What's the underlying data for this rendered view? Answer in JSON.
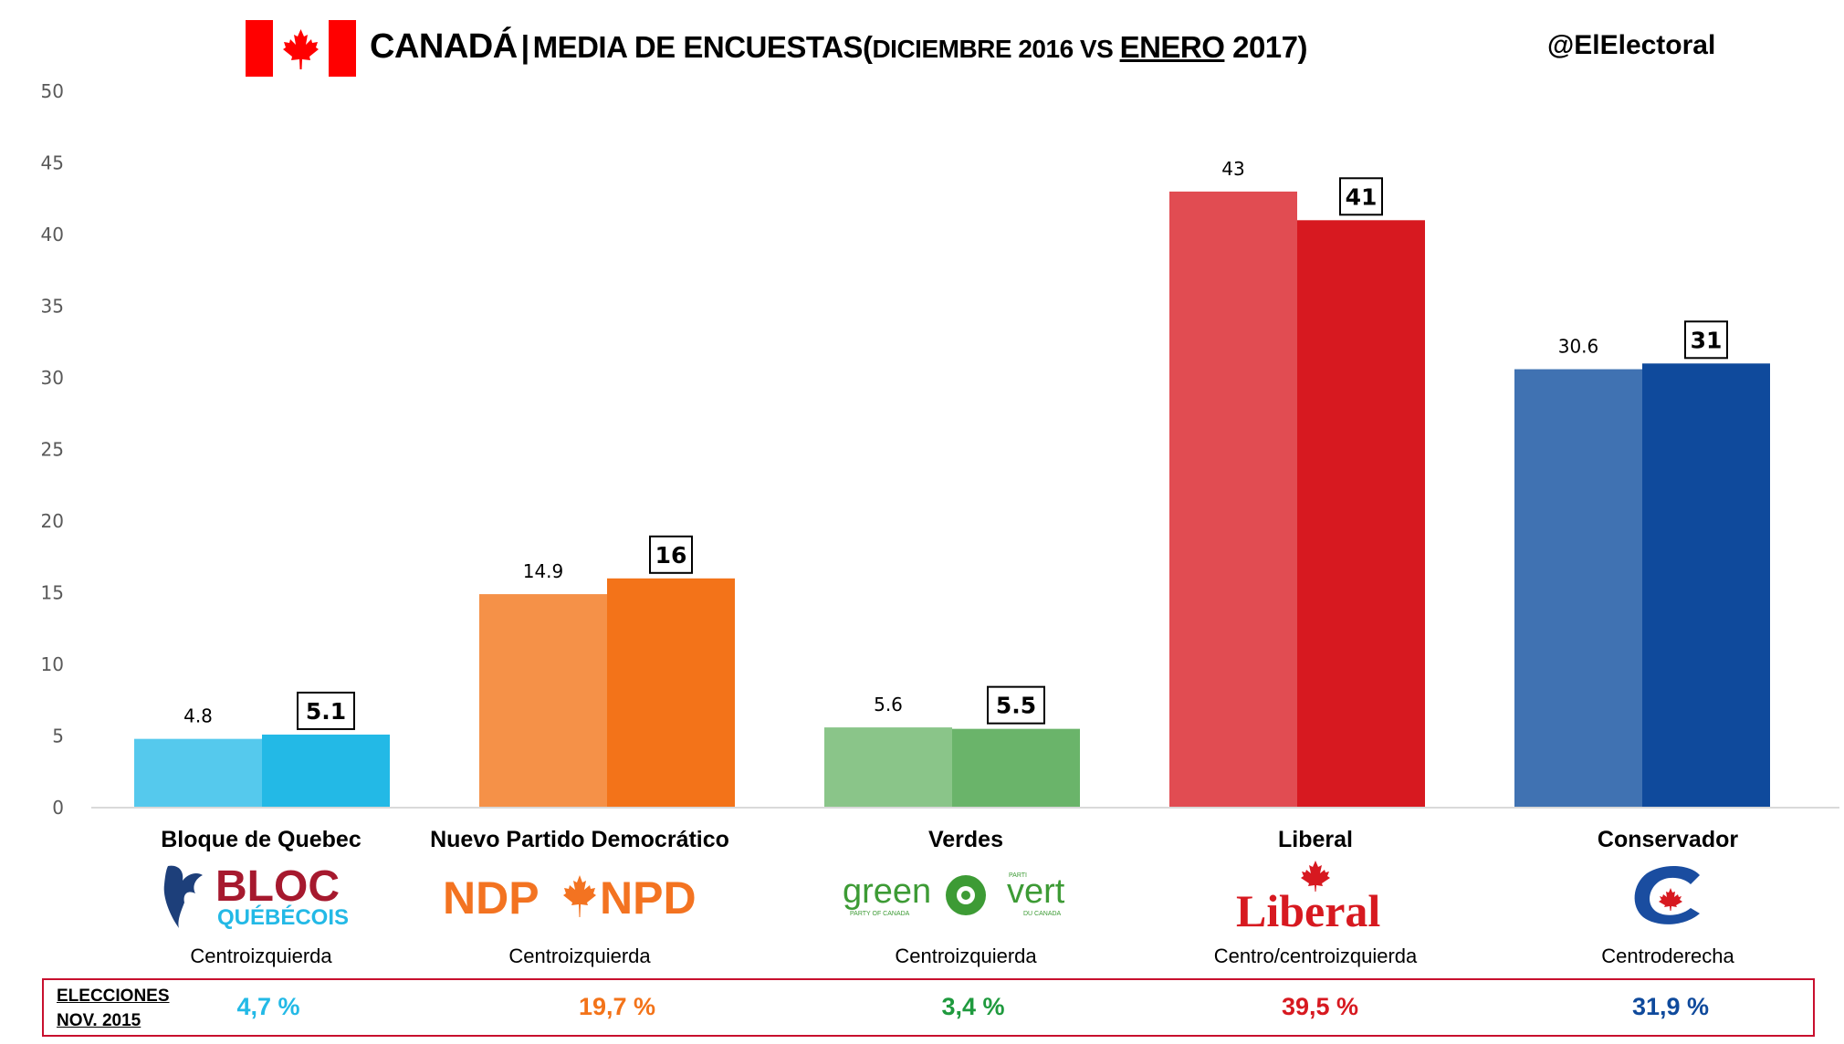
{
  "header": {
    "title_country": "CANADÁ",
    "title_separator": "|",
    "title_main": "MEDIA DE ENCUESTAS",
    "title_paren_open": "(",
    "title_period_a": "DICIEMBRE 2016 VS ",
    "title_period_b": "ENERO",
    "title_period_c": " 2017)",
    "handle": "@ElElectoral",
    "flag_icon": "canada-flag-icon"
  },
  "chart_data": {
    "type": "bar",
    "title": "CANADÁ | MEDIA DE ENCUESTAS (DICIEMBRE 2016 VS ENERO 2017)",
    "xlabel": "",
    "ylabel": "",
    "ylim": [
      0,
      50
    ],
    "yticks": [
      0,
      5,
      10,
      15,
      20,
      25,
      30,
      35,
      40,
      45,
      50
    ],
    "grid": false,
    "legend": "none",
    "categories": [
      "Bloque de Quebec",
      "Nuevo Partido Democrático",
      "Verdes",
      "Liberal",
      "Conservador"
    ],
    "series": [
      {
        "name": "Diciembre 2016",
        "values": [
          4.8,
          14.9,
          5.6,
          43,
          30.6
        ],
        "labels": [
          "4.8",
          "14.9",
          "5.6",
          "43",
          "30.6"
        ]
      },
      {
        "name": "Enero 2017",
        "values": [
          5.1,
          16,
          5.5,
          41,
          31
        ],
        "labels": [
          "5.1",
          "16",
          "5.5",
          "41",
          "31"
        ]
      }
    ],
    "colors": {
      "Diciembre 2016": [
        "#55c9ed",
        "#f59148",
        "#8ac589",
        "#e14c52",
        "#4072b2"
      ],
      "Enero 2017": [
        "#23b9e6",
        "#f37319",
        "#6ab46a",
        "#d71920",
        "#0f4a9c"
      ]
    }
  },
  "parties": [
    {
      "name": "Bloque de Quebec",
      "ideology": "Centroizquierda",
      "logo": "bloc-quebecois-logo",
      "logo_text_1": "BLOC",
      "logo_text_2": "QUÉBÉCOIS",
      "election_2015": "4,7 %",
      "color": "#23b9e6"
    },
    {
      "name": "Nuevo Partido Democrático",
      "ideology": "Centroizquierda",
      "logo": "ndp-logo",
      "logo_text_1": "NDP",
      "logo_text_2": "NPD",
      "election_2015": "19,7 %",
      "color": "#f37319"
    },
    {
      "name": "Verdes",
      "ideology": "Centroizquierda",
      "logo": "green-party-logo",
      "logo_text_1": "green",
      "logo_text_2": "vert",
      "logo_sub_1": "PARTY OF CANADA",
      "logo_sub_2": "DU CANADA",
      "logo_sub_3": "PARTI",
      "election_2015": "3,4 %",
      "color": "#1f9a3e"
    },
    {
      "name": "Liberal",
      "ideology": "Centro/centroizquierda",
      "logo": "liberal-logo",
      "logo_text_1": "Liberal",
      "election_2015": "39,5 %",
      "color": "#d71920"
    },
    {
      "name": "Conservador",
      "ideology": "Centroderecha",
      "logo": "conservative-logo",
      "election_2015": "31,9 %",
      "color": "#0f4a9c"
    }
  ],
  "results": {
    "label_line1": "ELECCIONES",
    "label_line2": "NOV. 2015"
  }
}
